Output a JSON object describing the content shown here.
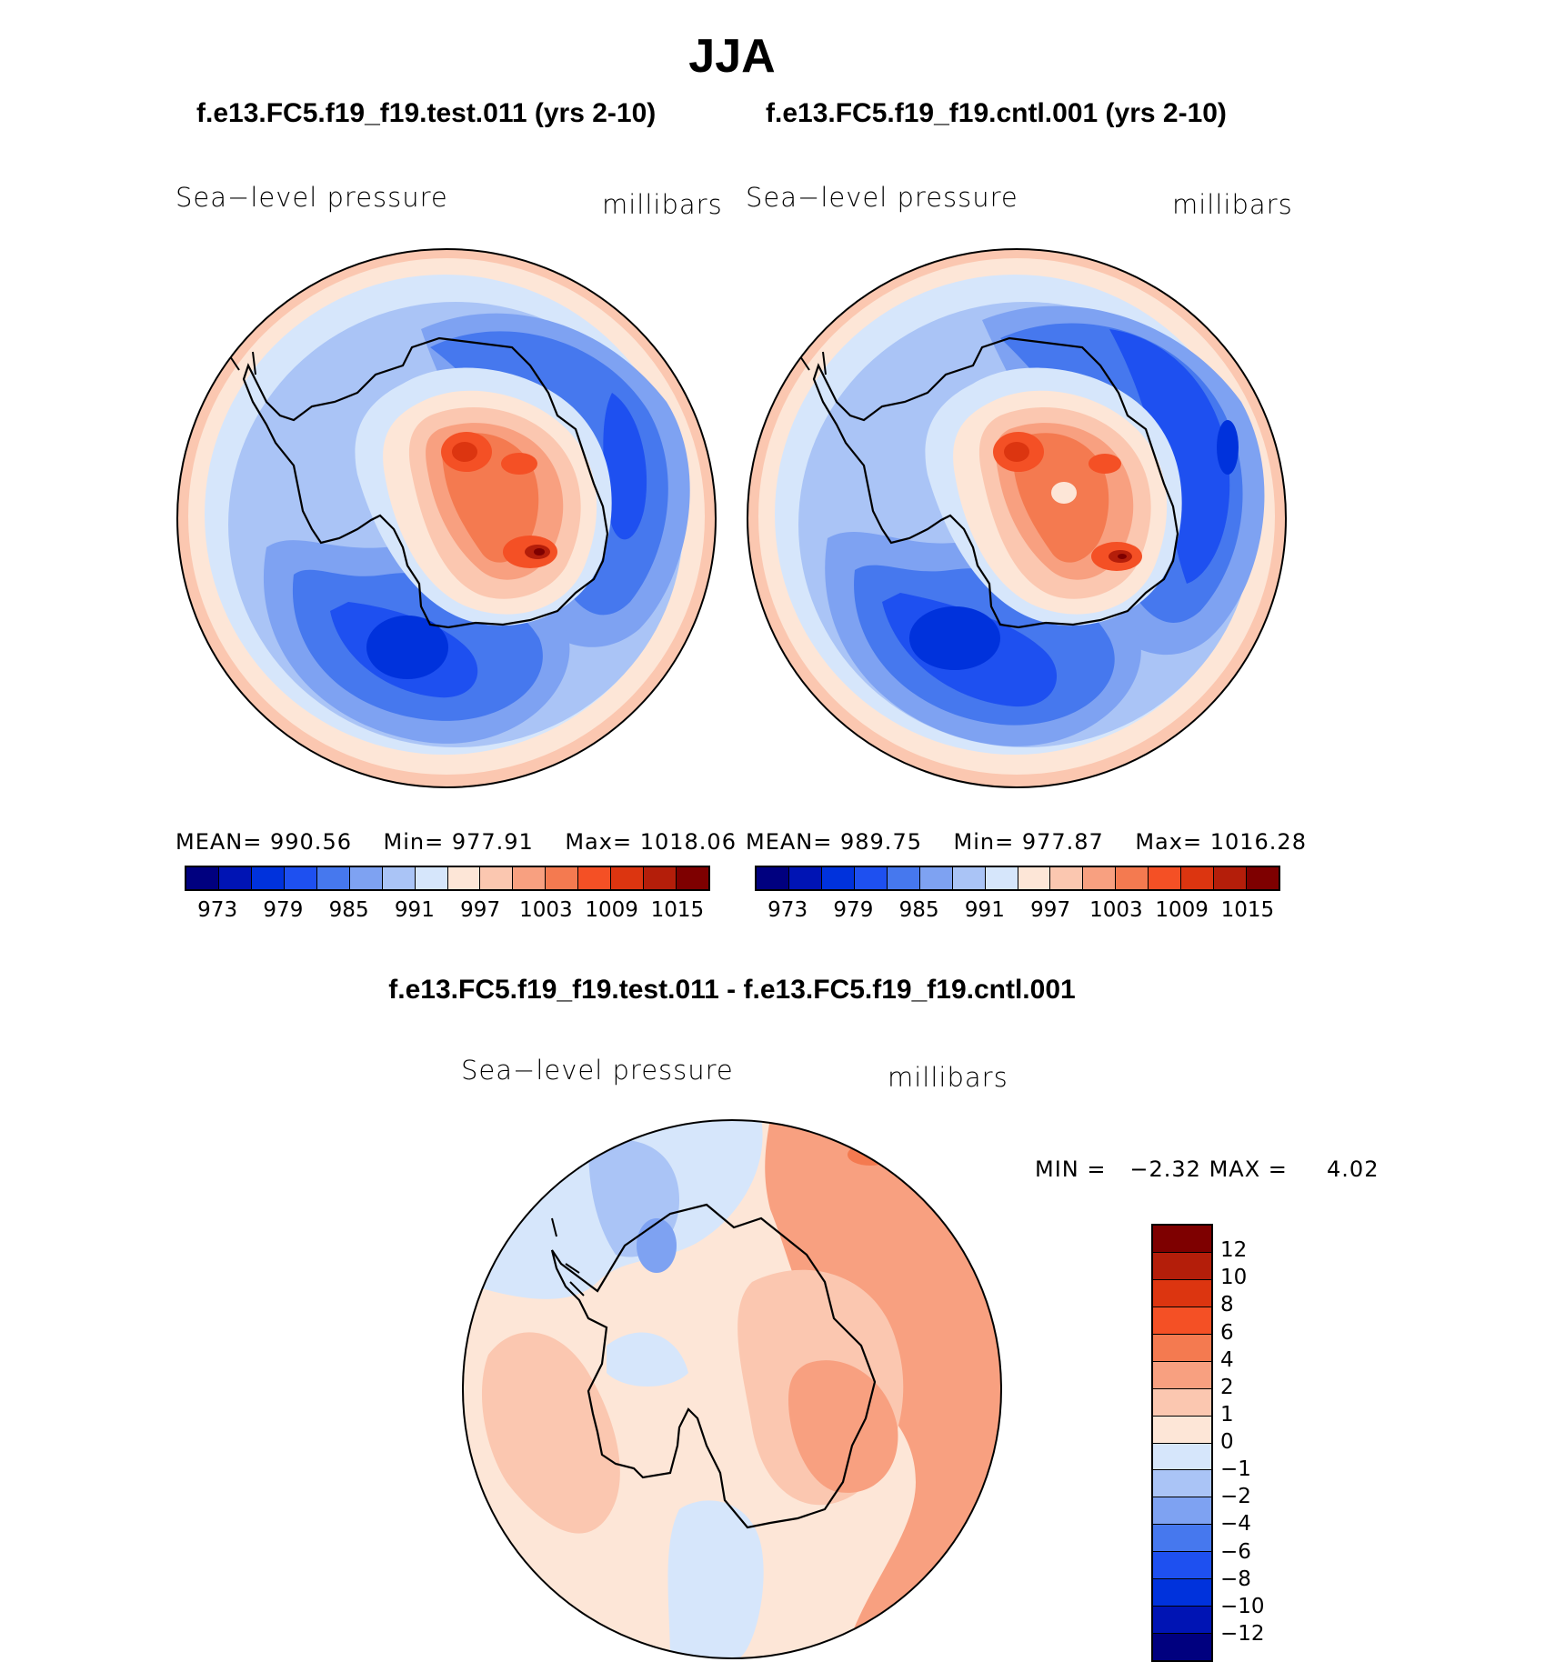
{
  "title": "JJA",
  "panels": {
    "test": {
      "case_title": "f.e13.FC5.f19_f19.test.011 (yrs 2-10)",
      "variable": "Sea−level pressure",
      "units": "millibars",
      "stats": {
        "mean_label": "MEAN=",
        "mean": "990.56",
        "min_label": "Min=",
        "min": "977.91",
        "max_label": "Max=",
        "max": "1018.06"
      }
    },
    "cntl": {
      "case_title": "f.e13.FC5.f19_f19.cntl.001 (yrs 2-10)",
      "variable": "Sea−level pressure",
      "units": "millibars",
      "stats": {
        "mean_label": "MEAN=",
        "mean": "989.75",
        "min_label": "Min=",
        "min": "977.87",
        "max_label": "Max=",
        "max": "1016.28"
      }
    },
    "diff": {
      "case_title": "f.e13.FC5.f19_f19.test.011 - f.e13.FC5.f19_f19.cntl.001",
      "variable": "Sea−level pressure",
      "units": "millibars",
      "stats": {
        "min_label": "MIN =",
        "min": "−2.32",
        "max_label": "MAX =",
        "max": "4.02"
      }
    }
  },
  "colorbar_abs": {
    "colors": [
      "#00007f",
      "#0014b4",
      "#0032dc",
      "#1e50f0",
      "#4678ee",
      "#7ea2f2",
      "#aac4f6",
      "#d6e6fb",
      "#fde6d7",
      "#fbc7b0",
      "#f8a080",
      "#f47a50",
      "#f45025",
      "#dc3510",
      "#b41e0a",
      "#7e0000"
    ],
    "labels": [
      "973",
      "979",
      "985",
      "991",
      "997",
      "1003",
      "1009",
      "1015"
    ]
  },
  "colorbar_diff": {
    "colors": [
      "#7e0000",
      "#b41e0a",
      "#dc3510",
      "#f45025",
      "#f47a50",
      "#f8a080",
      "#fbc7b0",
      "#fde6d7",
      "#d6e6fb",
      "#aac4f6",
      "#7ea2f2",
      "#4678ee",
      "#1e50f0",
      "#0032dc",
      "#0014b4",
      "#00007f"
    ],
    "labels": [
      "12",
      "10",
      "8",
      "6",
      "4",
      "2",
      "1",
      "0",
      "−1",
      "−2",
      "−4",
      "−6",
      "−8",
      "−10",
      "−12"
    ]
  }
}
